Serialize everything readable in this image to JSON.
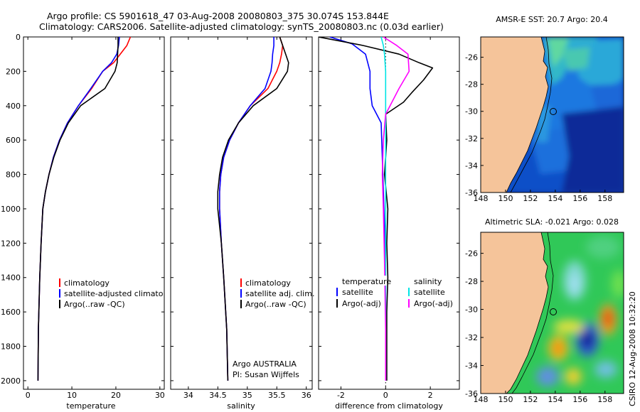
{
  "title": {
    "line1": "Argo profile: CS 5901618_47 03-Aug-2008 20080803_375 30.074S 153.844E",
    "line2": "Climatology: CARS2006. Satellite-adjusted climatology: synTS_20080803.nc (0.03d earlier)"
  },
  "colors": {
    "climatology": "#ff0000",
    "satellite": "#0000ff",
    "argo": "#000000",
    "argo_adj": "#ff00ff",
    "satellite_diff": "#00e5e5",
    "land": "#f5c49a"
  },
  "chart_data": [
    {
      "type": "line",
      "id": "temperature",
      "xlabel": "temperature",
      "ylabel": "",
      "xlim": [
        -1,
        31
      ],
      "ylim": [
        2050,
        0
      ],
      "xticks": [
        0,
        10,
        20,
        30
      ],
      "yticks": [
        0,
        200,
        400,
        600,
        800,
        1000,
        1200,
        1400,
        1600,
        1800,
        2000
      ],
      "legend": [
        "climatology",
        "satellite-adjusted climatology",
        "Argo(..raw -QC)"
      ],
      "series": [
        {
          "name": "climatology",
          "color": "#ff0000",
          "x": [
            23.3,
            22.5,
            21.0,
            19.5,
            17.0,
            14.5,
            11.5,
            9.0,
            7.2,
            5.8,
            4.8,
            4.0,
            3.4,
            3.0,
            2.7,
            2.4,
            2.3
          ],
          "y": [
            0,
            50,
            100,
            150,
            200,
            300,
            400,
            500,
            600,
            700,
            800,
            900,
            1000,
            1200,
            1400,
            1700,
            2000
          ]
        },
        {
          "name": "satellite-adjusted climatology",
          "color": "#0000ff",
          "x": [
            20.8,
            20.6,
            20.2,
            19.0,
            17.0,
            14.3,
            11.5,
            9.0,
            7.2,
            5.8,
            4.8,
            4.0,
            3.4,
            3.0,
            2.7,
            2.4,
            2.3
          ],
          "y": [
            0,
            50,
            100,
            150,
            200,
            300,
            400,
            500,
            600,
            700,
            800,
            900,
            1000,
            1200,
            1400,
            1700,
            2000
          ]
        },
        {
          "name": "Argo(..raw -QC)",
          "color": "#000000",
          "x": [
            20.5,
            20.5,
            20.4,
            20.3,
            19.8,
            17.5,
            12.0,
            9.2,
            7.3,
            5.9,
            4.8,
            4.0,
            3.4,
            3.0,
            2.7,
            2.4,
            2.3
          ],
          "y": [
            0,
            50,
            100,
            150,
            200,
            300,
            400,
            500,
            600,
            700,
            800,
            900,
            1000,
            1200,
            1400,
            1700,
            2000
          ]
        }
      ]
    },
    {
      "type": "line",
      "id": "salinity",
      "xlabel": "salinity",
      "ylabel": "",
      "xlim": [
        33.7,
        36.1
      ],
      "ylim": [
        2050,
        0
      ],
      "xticks": [
        34,
        34.5,
        35,
        35.5,
        36
      ],
      "legend": [
        "climatology",
        "satellite adj. clim.",
        "Argo(..raw -QC)"
      ],
      "annotation": [
        "Argo AUSTRALIA",
        "PI: Susan Wijffels"
      ],
      "series": [
        {
          "name": "climatology",
          "color": "#ff0000",
          "x": [
            35.55,
            35.6,
            35.58,
            35.55,
            35.5,
            35.35,
            35.05,
            34.85,
            34.7,
            34.6,
            34.55,
            34.53,
            34.53,
            34.56,
            34.6,
            34.65,
            34.67
          ],
          "y": [
            0,
            50,
            100,
            150,
            200,
            300,
            400,
            500,
            600,
            700,
            800,
            900,
            1000,
            1200,
            1400,
            1700,
            2000
          ]
        },
        {
          "name": "satellite adj. clim.",
          "color": "#0000ff",
          "x": [
            35.45,
            35.45,
            35.43,
            35.42,
            35.4,
            35.3,
            35.05,
            34.85,
            34.7,
            34.6,
            34.55,
            34.53,
            34.53,
            34.56,
            34.6,
            34.65,
            34.67
          ],
          "y": [
            0,
            50,
            100,
            150,
            200,
            300,
            400,
            500,
            600,
            700,
            800,
            900,
            1000,
            1200,
            1400,
            1700,
            2000
          ]
        },
        {
          "name": "Argo(..raw -QC)",
          "color": "#000000",
          "x": [
            35.55,
            35.6,
            35.65,
            35.7,
            35.68,
            35.5,
            35.1,
            34.85,
            34.68,
            34.58,
            34.53,
            34.5,
            34.5,
            34.56,
            34.6,
            34.65,
            34.67
          ],
          "y": [
            0,
            50,
            100,
            150,
            200,
            300,
            400,
            500,
            600,
            700,
            800,
            900,
            1000,
            1200,
            1400,
            1700,
            2000
          ]
        }
      ]
    },
    {
      "type": "line",
      "id": "difference",
      "xlabel": "difference from climatology",
      "ylabel": "",
      "xlim": [
        -3,
        3.3
      ],
      "ylim": [
        2050,
        0
      ],
      "xticks": [
        -2,
        0,
        2
      ],
      "legend_temperature": [
        "temperature",
        "satellite",
        "Argo(-adj)"
      ],
      "legend_salinity": [
        "salinity",
        "satellite",
        "Argo(-adj)"
      ],
      "series": [
        {
          "name": "temperature satellite",
          "color": "#0000ff",
          "x": [
            -2.5,
            -1.5,
            -0.9,
            -0.7,
            -0.7,
            -0.6,
            -0.2,
            -0.15,
            -0.1,
            -0.05,
            0,
            0,
            0
          ],
          "y": [
            0,
            40,
            100,
            200,
            300,
            400,
            500,
            700,
            900,
            1100,
            1400,
            1700,
            2000
          ]
        },
        {
          "name": "temperature Argo(-adj)",
          "color": "#000000",
          "x": [
            -3.0,
            -1.0,
            0.6,
            1.5,
            2.1,
            1.7,
            1.2,
            0.8,
            0.0,
            0.05,
            -0.05,
            0.1,
            0.05,
            0.1,
            0.05,
            0.05,
            0.05
          ],
          "y": [
            0,
            50,
            100,
            150,
            180,
            250,
            320,
            380,
            450,
            600,
            800,
            1000,
            1200,
            1400,
            1600,
            1800,
            2000
          ]
        },
        {
          "name": "salinity satellite",
          "color": "#00e5e5",
          "x": [
            -0.2,
            -0.1,
            -0.05,
            0,
            0,
            0,
            0,
            0,
            0,
            0
          ],
          "y": [
            0,
            50,
            100,
            200,
            400,
            700,
            1000,
            1400,
            1700,
            2000
          ]
        },
        {
          "name": "salinity Argo(-adj)",
          "color": "#ff00ff",
          "x": [
            -0.1,
            0.5,
            1.0,
            1.05,
            0.6,
            0.2,
            0.0,
            -0.1,
            -0.15,
            -0.1,
            -0.05,
            0,
            0
          ],
          "y": [
            0,
            50,
            100,
            200,
            300,
            400,
            450,
            600,
            800,
            1000,
            1300,
            1700,
            2000
          ]
        }
      ]
    },
    {
      "type": "heatmap",
      "id": "sst-map",
      "title": "AMSR-E SST: 20.7 Argo: 20.4",
      "xlim": [
        148,
        159.5
      ],
      "ylim": [
        -36,
        -24.5
      ],
      "xticks": [
        148,
        150,
        152,
        154,
        156,
        158
      ],
      "yticks": [
        -26,
        -28,
        -30,
        -32,
        -34,
        -36
      ],
      "marker": {
        "lon": 153.844,
        "lat": -30.074
      }
    },
    {
      "type": "heatmap",
      "id": "sla-map",
      "title": "Altimetric SLA: -0.021 Argo: 0.028",
      "xlim": [
        148,
        159.5
      ],
      "ylim": [
        -36,
        -24.5
      ],
      "xticks": [
        148,
        150,
        152,
        154,
        156,
        158
      ],
      "yticks": [
        -26,
        -28,
        -30,
        -32,
        -34,
        -36
      ],
      "marker": {
        "lon": 153.844,
        "lat": -30.074
      }
    }
  ],
  "footer": {
    "stamp": "CSIRO 12-Aug-2008 10:32:20"
  }
}
